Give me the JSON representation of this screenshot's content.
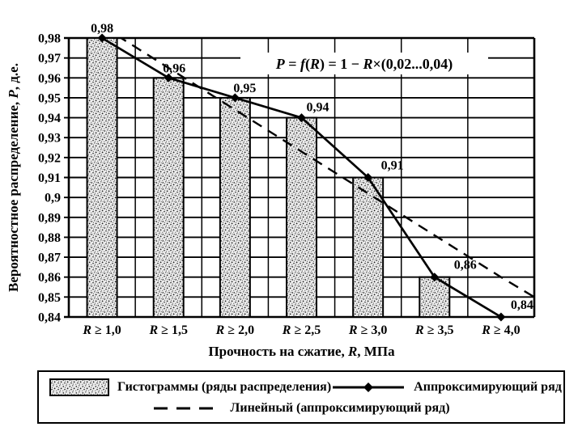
{
  "colors": {
    "foreground": "#000000",
    "background": "#ffffff",
    "bar_fill_base": "#ebebeb"
  },
  "chart_data": {
    "type": "bar",
    "title": "",
    "categories": [
      "R ≥ 1,0",
      "R ≥ 1,5",
      "R ≥ 2,0",
      "R ≥ 2,5",
      "R ≥ 3,0",
      "R ≥ 3,5",
      "R ≥ 4,0"
    ],
    "xlabel": "Прочность на сжатие, R, МПа",
    "ylabel": "Вероятностное распределение, P, д.е.",
    "ylim": [
      0.84,
      0.98
    ],
    "ytick_step": 0.01,
    "ytick_labels": [
      "0,98",
      "0,97",
      "0,96",
      "0,95",
      "0,94",
      "0,93",
      "0,92",
      "0,91",
      "0,9",
      "0,89",
      "0,88",
      "0,87",
      "0,86",
      "0,85",
      "0,84"
    ],
    "grid": true,
    "legend_position": "bottom",
    "annotation": "P = f(R) = 1 − R×(0,02...0,04)",
    "series": [
      {
        "name": "Гистограммы (ряды распределения)",
        "type": "bar",
        "values": [
          0.98,
          0.96,
          0.95,
          0.94,
          0.91,
          0.86,
          null
        ]
      },
      {
        "name": "Аппроксимирующий ряд",
        "type": "line",
        "marker": "diamond",
        "values": [
          0.98,
          0.96,
          0.95,
          0.94,
          0.91,
          0.86,
          0.84
        ],
        "point_labels": [
          "0,98",
          "0,96",
          "0,95",
          "0,94",
          "0,91",
          "0,86",
          "0,84"
        ]
      },
      {
        "name": "Линейный (аппроксимирующий ряд)",
        "type": "line",
        "style": "dashed",
        "values": [
          0.986,
          0.965,
          0.944,
          0.923,
          0.902,
          0.881,
          0.86
        ],
        "right_edge_value": 0.85
      }
    ]
  },
  "legend": {
    "items": [
      {
        "label": "Гистограммы (ряды распределения)",
        "swatch": "histogram-pattern"
      },
      {
        "label": "Аппроксимирующий ряд",
        "swatch": "solid-line-diamond"
      },
      {
        "label": "Линейный (аппроксимирующий ряд)",
        "swatch": "dashed-line"
      }
    ]
  }
}
